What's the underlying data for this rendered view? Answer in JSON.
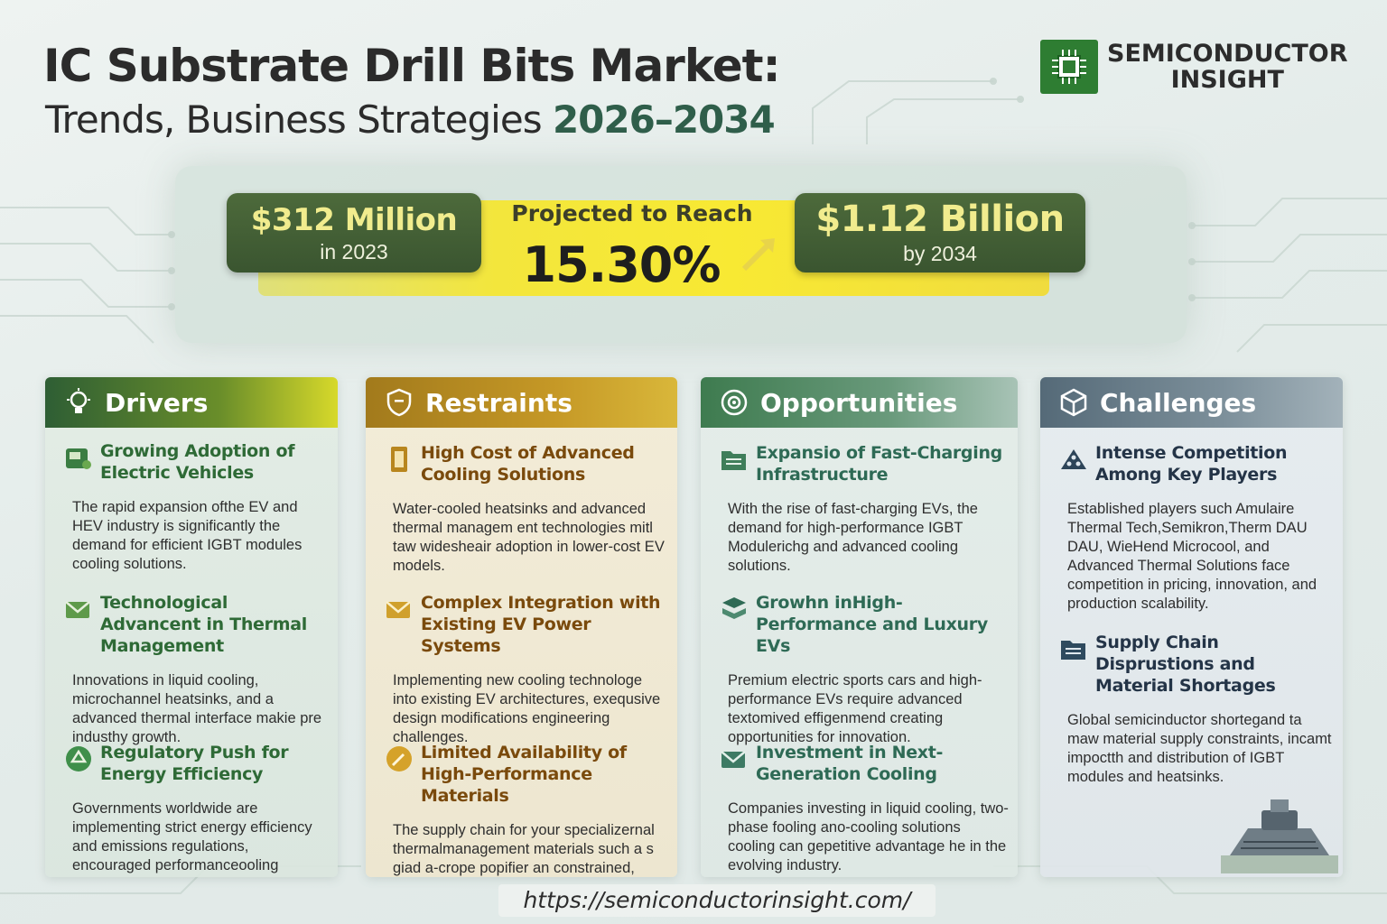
{
  "header": {
    "title": "IC Substrate Drill Bits Market:",
    "subtitle": "Trends, Business Strategies",
    "years": "2026–2034"
  },
  "brand": {
    "name_line1": "SEMICONDUCTOR",
    "name_line2": "INSIGHT",
    "icon": "chip-icon",
    "color": "#2e7d32"
  },
  "stats": {
    "start_value": "$312 Million",
    "start_label": "in 2023",
    "projected_label": "Projected to Reach",
    "cagr": "15.30%",
    "end_value": "$1.12 Billion",
    "end_label": "by 2034"
  },
  "columns": {
    "drivers": {
      "heading": "Drivers",
      "icon": "lightbulb-icon",
      "items": [
        {
          "title": "Growing Adoption of Electric Vehicles",
          "icon": "ev-charger-icon",
          "body": "The rapid expansion ofthe EV and HEV industry is significantly the demand for efficient IGBT modules cooling solutions."
        },
        {
          "title": "Technological Advancent in Thermal Management",
          "icon": "envelope-chip-icon",
          "body": "Innovations in liquid cooling, microchannel heatsinks, and a advanced thermal interface makie pre industhy growth."
        },
        {
          "title": "Regulatory Push for Energy Efficiency",
          "icon": "recycle-icon",
          "body": "Governments worldwide are implementing strict energy efficiency and emissions regulations, encouraged performanceooling hesperemen EVs."
        }
      ]
    },
    "restraints": {
      "heading": "Restraints",
      "icon": "shield-icon",
      "items": [
        {
          "title": "High Cost of Advanced Cooling Solutions",
          "icon": "battery-icon",
          "body": "Water-cooled heatsinks and advanced thermal managem ent technologies mitl taw widesheair adoption in lower-cost EV models."
        },
        {
          "title": "Complex Integration with Existing EV Power Systems",
          "icon": "envelope-icon",
          "body": "Implementing new cooling technologe into existing EV architectures, exequsive design modifications engineering challenges."
        },
        {
          "title": "Limited Availability of High-Performance Materials",
          "icon": "wrench-icon",
          "body": "The supply chain for your specializernal thermalmanagement materials such a s giad a-crope popifier an constrained, affecting production."
        }
      ]
    },
    "opportunities": {
      "heading": "Opportunities",
      "icon": "target-icon",
      "items": [
        {
          "title": "Expansio of Fast-Charging Infrastructure",
          "icon": "folder-icon",
          "body": "With the rise of fast-charging EVs, the demand for high-performance IGBT Modulerichg and advanced cooling solutions."
        },
        {
          "title": "Growhn inHigh-Performance and Luxury EVs",
          "icon": "stack-icon",
          "body": "Premium electric sports cars and high-performance EVs require advanced textomived effigenmend creating opportunities for innovation."
        },
        {
          "title": "Investment in Next-Generation Cooling",
          "icon": "envelope-icon",
          "body": "Companies investing in liquid cooling, two-phase fooling ano-cooling solutions cooling can gepetitive advantage he in the evolving industry."
        }
      ]
    },
    "challenges": {
      "heading": "Challenges",
      "icon": "cube-icon",
      "items": [
        {
          "title": "Intense Competition Among Key Players",
          "icon": "users-icon",
          "body": "Established players such Amulaire Thermal Tech,Semikron,Therm DAU DAU, WieHend Microcool, and Advanced Thermal Solutions face competition in pricing, innovation, and production scalability."
        },
        {
          "title": "Supply Chain Disprustions and Material Shortages",
          "icon": "folder-icon",
          "body": "Global semicinductor shortegand ta maw material supply constraints, incamt impoctth and distribution of IGBT modules and heatsinks."
        }
      ]
    }
  },
  "footer": {
    "url": "https://semiconductorinsight.com/"
  }
}
